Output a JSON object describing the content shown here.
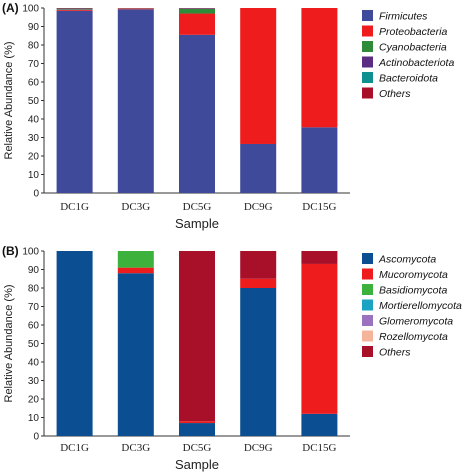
{
  "chart_data": [
    {
      "panel_label": "(A)",
      "type": "bar",
      "stacked": true,
      "categories": [
        "DC1G",
        "DC3G",
        "DC5G",
        "DC9G",
        "DC15G"
      ],
      "xlabel": "Sample",
      "ylabel": "Relative Abundance (%)",
      "ylim": [
        0,
        100
      ],
      "yticks": [
        0,
        10,
        20,
        30,
        40,
        50,
        60,
        70,
        80,
        90,
        100
      ],
      "legend_position": "right",
      "series": [
        {
          "name": "Firmicutes",
          "color": "#3f4a9b",
          "values": [
            98.5,
            99.3,
            85.5,
            26.5,
            35.5
          ]
        },
        {
          "name": "Proteobacteria",
          "color": "#ee1c1c",
          "values": [
            0.5,
            0.4,
            11.5,
            73.5,
            64.5
          ]
        },
        {
          "name": "Cyanobacteria",
          "color": "#2e8b3a",
          "values": [
            0.3,
            0.1,
            2.5,
            0,
            0
          ]
        },
        {
          "name": "Actinobacteriota",
          "color": "#5a2d82",
          "values": [
            0.2,
            0.1,
            0.2,
            0,
            0
          ]
        },
        {
          "name": "Bacteroidota",
          "color": "#0f8f8f",
          "values": [
            0.2,
            0.05,
            0.1,
            0,
            0
          ]
        },
        {
          "name": "Others",
          "color": "#a8102a",
          "values": [
            0.3,
            0.05,
            0.2,
            0,
            0
          ]
        }
      ]
    },
    {
      "panel_label": "(B)",
      "type": "bar",
      "stacked": true,
      "categories": [
        "DC1G",
        "DC3G",
        "DC5G",
        "DC9G",
        "DC15G"
      ],
      "xlabel": "Sample",
      "ylabel": "Relative Abundance (%)",
      "ylim": [
        0,
        100
      ],
      "yticks": [
        0,
        10,
        20,
        30,
        40,
        50,
        60,
        70,
        80,
        90,
        100
      ],
      "legend_position": "right",
      "series": [
        {
          "name": "Ascomycota",
          "color": "#0b4f92",
          "values": [
            100,
            88,
            7,
            80,
            12
          ]
        },
        {
          "name": "Mucoromycota",
          "color": "#ee1c1c",
          "values": [
            0,
            3,
            1,
            5,
            81
          ]
        },
        {
          "name": "Basidiomycota",
          "color": "#3cb23c",
          "values": [
            0,
            9,
            0,
            0,
            0
          ]
        },
        {
          "name": "Mortierellomycota",
          "color": "#1aa3c2",
          "values": [
            0,
            0,
            0,
            0,
            0
          ]
        },
        {
          "name": "Glomeromycota",
          "color": "#9b72c0",
          "values": [
            0,
            0,
            0,
            0,
            0
          ]
        },
        {
          "name": "Rozellomycota",
          "color": "#f5b59a",
          "values": [
            0,
            0,
            0,
            0,
            0
          ]
        },
        {
          "name": "Others",
          "color": "#a8102a",
          "values": [
            0,
            0,
            92,
            15,
            7
          ]
        }
      ]
    }
  ]
}
